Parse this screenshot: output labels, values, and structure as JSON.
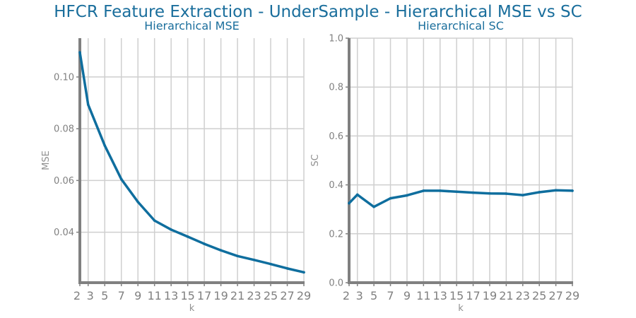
{
  "suptitle": "HFCR Feature Extraction - UnderSample - Hierarchical MSE vs SC",
  "colors": {
    "line": "#0f6e9e",
    "title": "#1a6e9c",
    "grid": "#cfcfcf",
    "spine": "#808080",
    "text": "#808080"
  },
  "chart_data": [
    {
      "type": "line",
      "title": "Hierarchical MSE",
      "xlabel": "k",
      "ylabel": "MSE",
      "grid": true,
      "x": [
        2,
        3,
        5,
        7,
        9,
        11,
        13,
        15,
        17,
        19,
        21,
        23,
        25,
        27,
        29
      ],
      "xticks": [
        "2",
        "3",
        "5",
        "7",
        "9",
        "11",
        "13",
        "15",
        "17",
        "19",
        "21",
        "23",
        "25",
        "27",
        "29"
      ],
      "xlim": [
        2,
        29
      ],
      "ylim": [
        0.0205,
        0.115
      ],
      "yticks": [
        0.04,
        0.06,
        0.08,
        0.1
      ],
      "ytick_labels": [
        "0.04",
        "0.06",
        "0.08",
        "0.10"
      ],
      "series": [
        {
          "values": [
            0.1095,
            0.0893,
            0.0735,
            0.0605,
            0.0517,
            0.0445,
            0.041,
            0.0383,
            0.0355,
            0.033,
            0.0308,
            0.0293,
            0.0277,
            0.026,
            0.0245
          ]
        }
      ]
    },
    {
      "type": "line",
      "title": "Hierarchical SC",
      "xlabel": "k",
      "ylabel": "SC",
      "grid": true,
      "x": [
        2,
        3,
        5,
        7,
        9,
        11,
        13,
        15,
        17,
        19,
        21,
        23,
        25,
        27,
        29
      ],
      "xticks": [
        "2",
        "3",
        "5",
        "7",
        "9",
        "11",
        "13",
        "15",
        "17",
        "19",
        "21",
        "23",
        "25",
        "27",
        "29"
      ],
      "xlim": [
        2,
        29
      ],
      "ylim": [
        0.0,
        1.0
      ],
      "yticks": [
        0.0,
        0.2,
        0.4,
        0.6,
        0.8,
        1.0
      ],
      "ytick_labels": [
        "0.0",
        "0.2",
        "0.4",
        "0.6",
        "0.8",
        "1.0"
      ],
      "series": [
        {
          "values": [
            0.325,
            0.36,
            0.31,
            0.345,
            0.357,
            0.376,
            0.376,
            0.372,
            0.368,
            0.365,
            0.364,
            0.358,
            0.37,
            0.378,
            0.376
          ]
        }
      ]
    }
  ]
}
